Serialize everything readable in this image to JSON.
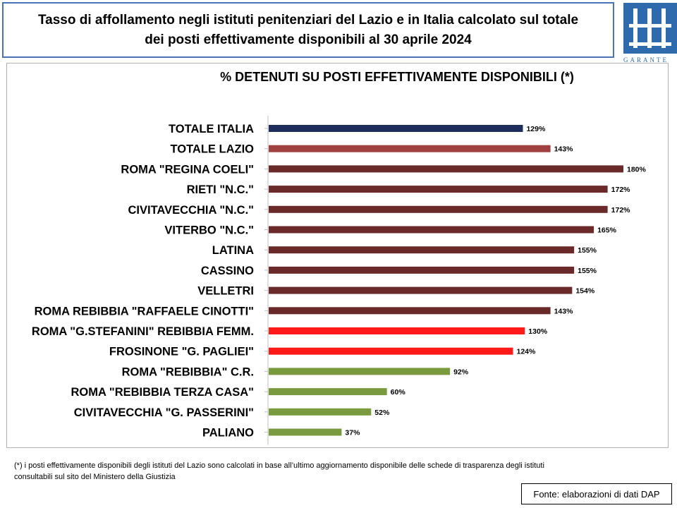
{
  "header": {
    "title_line1": "Tasso di affollamento negli istituti penitenziari del Lazio e in Italia calcolato sul totale",
    "title_line2": "dei posti effettivamente disponibili al 30 aprile 2024",
    "logo_text": "GARANTE",
    "logo_icon": "garante-logo-icon"
  },
  "chart_data": {
    "type": "bar",
    "orientation": "horizontal",
    "title": "% DETENUTI SU POSTI EFFETTIVAMENTE DISPONIBILI (*)",
    "categories": [
      "TOTALE ITALIA",
      "TOTALE LAZIO",
      "ROMA \"REGINA COELI\"",
      "RIETI \"N.C.\"",
      "CIVITAVECCHIA \"N.C.\"",
      "VITERBO \"N.C.\"",
      "LATINA",
      "CASSINO",
      "VELLETRI",
      "ROMA REBIBBIA \"RAFFAELE CINOTTI\"",
      "ROMA \"G.STEFANINI\" REBIBBIA FEMM.",
      "FROSINONE \"G. PAGLIEI\"",
      "ROMA \"REBIBBIA\" C.R.",
      "ROMA \"REBIBBIA TERZA CASA\"",
      "CIVITAVECCHIA \"G. PASSERINI\"",
      "PALIANO"
    ],
    "values": [
      129,
      143,
      180,
      172,
      172,
      165,
      155,
      155,
      154,
      143,
      130,
      124,
      92,
      60,
      52,
      37
    ],
    "value_labels": [
      "129%",
      "143%",
      "180%",
      "172%",
      "172%",
      "165%",
      "155%",
      "155%",
      "154%",
      "143%",
      "130%",
      "124%",
      "92%",
      "60%",
      "52%",
      "37%"
    ],
    "colors": [
      "#1f2d5c",
      "#a04040",
      "#6b2a2a",
      "#6b2a2a",
      "#6b2a2a",
      "#6b2a2a",
      "#6b2a2a",
      "#6b2a2a",
      "#6b2a2a",
      "#6b2a2a",
      "#ff1a1a",
      "#ff1a1a",
      "#7a9a3e",
      "#7a9a3e",
      "#7a9a3e",
      "#7a9a3e"
    ],
    "xlim": [
      0,
      180
    ],
    "grid": false,
    "legend": "none"
  },
  "footer": {
    "footnote_line1": "(*) i posti effettivamente disponibili  degli istituti del Lazio sono  calcolati in base all’ultimo aggiornamento disponibile  delle schede di trasparenza degli istituti",
    "footnote_line2": "consultabili sul sito del Ministero della Giustizia",
    "source": "Fonte: elaborazioni di dati DAP"
  }
}
